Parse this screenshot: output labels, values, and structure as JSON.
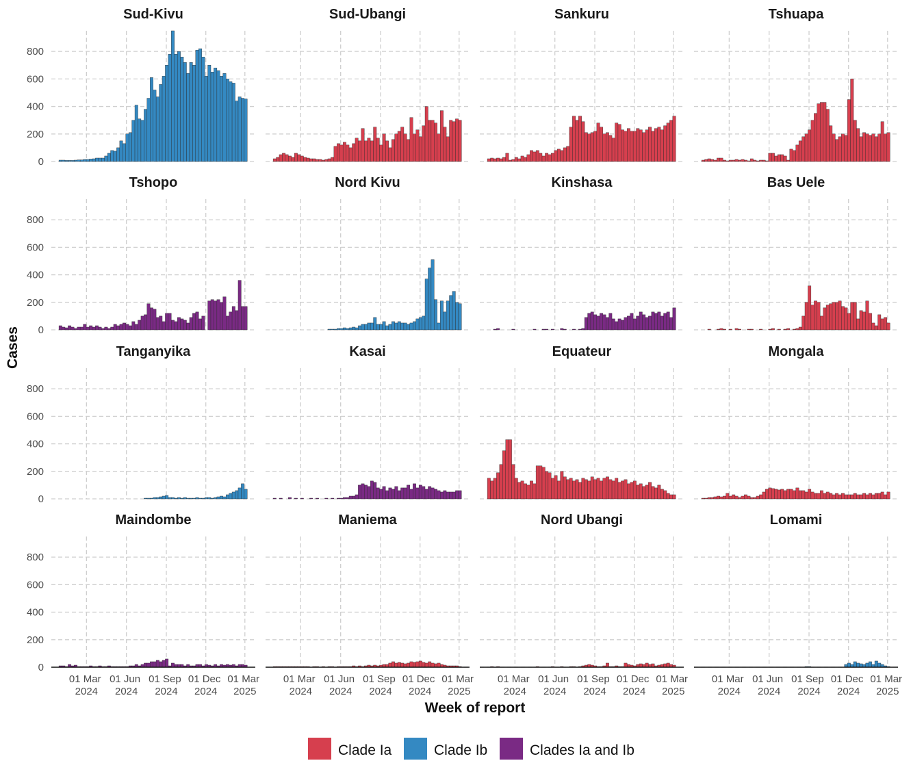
{
  "chart_data": {
    "type": "bar",
    "xlabel": "Week of report",
    "ylabel": "Cases",
    "ylim": [
      0,
      950
    ],
    "yticks": [
      0,
      200,
      400,
      600,
      800
    ],
    "xlim": [
      "2023-12-11",
      "2025-03-25"
    ],
    "xticks": [
      {
        "value": "2024-03-01",
        "label": "01 Mar 2024"
      },
      {
        "value": "2024-06-01",
        "label": "01 Jun 2024"
      },
      {
        "value": "2024-09-01",
        "label": "01 Sep 2024"
      },
      {
        "value": "2024-12-01",
        "label": "01 Dec 2024"
      },
      {
        "value": "2025-03-01",
        "label": "01 Mar 2025"
      }
    ],
    "grid": true,
    "legend": [
      {
        "name": "Clade Ia",
        "color": "#d63f4e"
      },
      {
        "name": "Clade Ib",
        "color": "#3489c2"
      },
      {
        "name": "Clades Ia and Ib",
        "color": "#7a2a84"
      }
    ],
    "x": [
      "2024-01-01",
      "2024-01-08",
      "2024-01-15",
      "2024-01-22",
      "2024-01-29",
      "2024-02-05",
      "2024-02-12",
      "2024-02-19",
      "2024-02-26",
      "2024-03-04",
      "2024-03-11",
      "2024-03-18",
      "2024-03-25",
      "2024-04-01",
      "2024-04-08",
      "2024-04-15",
      "2024-04-22",
      "2024-04-29",
      "2024-05-06",
      "2024-05-13",
      "2024-05-20",
      "2024-05-27",
      "2024-06-03",
      "2024-06-10",
      "2024-06-17",
      "2024-06-24",
      "2024-07-01",
      "2024-07-08",
      "2024-07-15",
      "2024-07-22",
      "2024-07-29",
      "2024-08-05",
      "2024-08-12",
      "2024-08-19",
      "2024-08-26",
      "2024-09-02",
      "2024-09-09",
      "2024-09-16",
      "2024-09-23",
      "2024-09-30",
      "2024-10-07",
      "2024-10-14",
      "2024-10-21",
      "2024-10-28",
      "2024-11-04",
      "2024-11-11",
      "2024-11-18",
      "2024-11-25",
      "2024-12-02",
      "2024-12-09",
      "2024-12-16",
      "2024-12-23",
      "2024-12-30",
      "2025-01-06",
      "2025-01-13",
      "2025-01-20",
      "2025-01-27",
      "2025-02-03",
      "2025-02-10",
      "2025-02-17",
      "2025-02-24",
      "2025-03-03"
    ],
    "panels": [
      {
        "title": "Sud-Kivu",
        "color": "#3489c2",
        "values": [
          10,
          10,
          8,
          8,
          8,
          10,
          12,
          12,
          15,
          15,
          18,
          20,
          25,
          25,
          25,
          40,
          60,
          80,
          75,
          100,
          150,
          130,
          200,
          210,
          300,
          410,
          310,
          300,
          380,
          460,
          610,
          520,
          470,
          560,
          620,
          700,
          780,
          950,
          780,
          800,
          760,
          720,
          640,
          720,
          700,
          810,
          820,
          760,
          620,
          700,
          650,
          680,
          660,
          620,
          640,
          600,
          580,
          570,
          440,
          470,
          460,
          455
        ]
      },
      {
        "title": "Sud-Ubangi",
        "color": "#d63f4e",
        "values": [
          20,
          30,
          50,
          60,
          50,
          40,
          30,
          60,
          50,
          40,
          30,
          25,
          20,
          20,
          15,
          15,
          10,
          15,
          20,
          30,
          110,
          130,
          120,
          140,
          120,
          100,
          130,
          170,
          150,
          240,
          150,
          170,
          150,
          250,
          170,
          120,
          200,
          150,
          100,
          160,
          200,
          220,
          250,
          200,
          160,
          320,
          200,
          230,
          180,
          260,
          400,
          300,
          300,
          280,
          200,
          370,
          250,
          180,
          300,
          290,
          310,
          300
        ]
      },
      {
        "title": "Sankuru",
        "color": "#d63f4e",
        "values": [
          20,
          25,
          20,
          25,
          20,
          30,
          60,
          10,
          15,
          30,
          20,
          40,
          30,
          50,
          80,
          70,
          80,
          60,
          40,
          60,
          50,
          60,
          80,
          90,
          80,
          100,
          110,
          250,
          330,
          300,
          330,
          290,
          210,
          200,
          210,
          220,
          280,
          250,
          200,
          210,
          190,
          170,
          280,
          270,
          230,
          220,
          240,
          220,
          220,
          240,
          230,
          210,
          230,
          250,
          220,
          240,
          250,
          230,
          260,
          280,
          300,
          330
        ]
      },
      {
        "title": "Tshuapa",
        "color": "#d63f4e",
        "values": [
          10,
          15,
          20,
          15,
          10,
          25,
          25,
          10,
          5,
          10,
          10,
          15,
          10,
          15,
          10,
          5,
          20,
          10,
          5,
          10,
          10,
          5,
          60,
          60,
          40,
          50,
          50,
          40,
          10,
          90,
          80,
          120,
          150,
          180,
          200,
          230,
          300,
          350,
          420,
          430,
          430,
          380,
          260,
          200,
          160,
          180,
          200,
          190,
          450,
          600,
          300,
          240,
          180,
          210,
          200,
          190,
          200,
          180,
          200,
          290,
          200,
          210
        ]
      },
      {
        "title": "Tshopo",
        "color": "#7a2a84",
        "values": [
          30,
          20,
          15,
          30,
          20,
          10,
          20,
          20,
          40,
          20,
          30,
          20,
          30,
          20,
          10,
          20,
          10,
          20,
          40,
          30,
          40,
          50,
          40,
          30,
          60,
          40,
          70,
          100,
          110,
          190,
          160,
          150,
          90,
          100,
          60,
          120,
          120,
          70,
          60,
          90,
          80,
          70,
          50,
          90,
          120,
          130,
          80,
          100,
          0,
          210,
          220,
          210,
          220,
          200,
          240,
          100,
          130,
          170,
          140,
          360,
          170,
          170
        ]
      },
      {
        "title": "Nord Kivu",
        "color": "#3489c2",
        "values": [
          0,
          0,
          0,
          0,
          0,
          0,
          0,
          0,
          0,
          0,
          0,
          0,
          0,
          0,
          0,
          0,
          0,
          0,
          5,
          5,
          5,
          10,
          10,
          15,
          10,
          15,
          20,
          15,
          30,
          40,
          40,
          50,
          50,
          90,
          40,
          40,
          60,
          30,
          40,
          60,
          50,
          60,
          50,
          50,
          40,
          50,
          60,
          80,
          90,
          100,
          370,
          450,
          510,
          220,
          50,
          210,
          130,
          210,
          250,
          280,
          200,
          190
        ]
      },
      {
        "title": "Kinshasa",
        "color": "#7a2a84",
        "values": [
          0,
          0,
          5,
          10,
          0,
          0,
          0,
          0,
          5,
          0,
          0,
          0,
          0,
          0,
          0,
          5,
          0,
          0,
          5,
          5,
          0,
          5,
          0,
          0,
          10,
          5,
          0,
          0,
          5,
          0,
          5,
          10,
          90,
          120,
          130,
          110,
          100,
          120,
          110,
          90,
          120,
          80,
          60,
          80,
          70,
          90,
          100,
          120,
          80,
          100,
          130,
          110,
          90,
          100,
          130,
          120,
          130,
          100,
          120,
          130,
          90,
          160
        ]
      },
      {
        "title": "Bas Uele",
        "color": "#d63f4e",
        "values": [
          0,
          0,
          5,
          0,
          0,
          5,
          10,
          5,
          0,
          5,
          0,
          10,
          5,
          0,
          0,
          5,
          5,
          0,
          0,
          5,
          0,
          0,
          5,
          10,
          0,
          5,
          0,
          5,
          10,
          0,
          5,
          10,
          20,
          100,
          200,
          320,
          180,
          210,
          200,
          100,
          160,
          180,
          190,
          200,
          200,
          210,
          170,
          160,
          120,
          200,
          200,
          80,
          140,
          130,
          210,
          120,
          50,
          30,
          110,
          80,
          90,
          50
        ]
      },
      {
        "title": "Tanganyika",
        "color": "#3489c2",
        "values": [
          0,
          0,
          0,
          0,
          0,
          0,
          0,
          0,
          0,
          0,
          0,
          0,
          0,
          0,
          0,
          0,
          0,
          0,
          0,
          0,
          0,
          0,
          0,
          0,
          0,
          0,
          0,
          0,
          5,
          5,
          5,
          10,
          10,
          15,
          20,
          25,
          10,
          10,
          5,
          10,
          5,
          10,
          5,
          5,
          5,
          10,
          5,
          5,
          10,
          10,
          5,
          10,
          15,
          20,
          15,
          30,
          40,
          50,
          60,
          80,
          110,
          70
        ]
      },
      {
        "title": "Kasai",
        "color": "#7a2a84",
        "values": [
          5,
          0,
          5,
          0,
          0,
          10,
          0,
          5,
          0,
          5,
          0,
          0,
          5,
          0,
          5,
          0,
          0,
          5,
          0,
          5,
          0,
          5,
          5,
          10,
          10,
          20,
          20,
          30,
          100,
          110,
          100,
          90,
          130,
          120,
          80,
          70,
          90,
          60,
          80,
          70,
          90,
          60,
          80,
          80,
          100,
          70,
          110,
          80,
          100,
          90,
          70,
          90,
          80,
          70,
          60,
          50,
          60,
          50,
          50,
          50,
          60,
          60
        ]
      },
      {
        "title": "Equateur",
        "color": "#d63f4e",
        "values": [
          150,
          130,
          150,
          190,
          250,
          350,
          430,
          430,
          250,
          150,
          120,
          130,
          110,
          100,
          130,
          110,
          240,
          240,
          230,
          200,
          190,
          150,
          170,
          130,
          200,
          160,
          140,
          150,
          130,
          140,
          120,
          150,
          140,
          130,
          160,
          140,
          150,
          130,
          150,
          160,
          140,
          130,
          150,
          120,
          130,
          140,
          110,
          120,
          130,
          100,
          110,
          90,
          100,
          120,
          90,
          80,
          100,
          70,
          60,
          40,
          30,
          30
        ]
      },
      {
        "title": "Mongala",
        "color": "#d63f4e",
        "values": [
          5,
          5,
          10,
          10,
          15,
          20,
          15,
          20,
          40,
          20,
          30,
          20,
          10,
          20,
          30,
          20,
          10,
          10,
          20,
          30,
          50,
          70,
          80,
          75,
          70,
          65,
          70,
          60,
          70,
          70,
          60,
          80,
          60,
          60,
          50,
          70,
          50,
          40,
          40,
          60,
          40,
          50,
          40,
          30,
          40,
          30,
          40,
          30,
          30,
          30,
          40,
          30,
          30,
          40,
          30,
          40,
          30,
          40,
          40,
          50,
          30,
          50
        ]
      },
      {
        "title": "Maindombe",
        "color": "#7a2a84",
        "values": [
          10,
          10,
          5,
          20,
          10,
          15,
          5,
          5,
          5,
          5,
          10,
          5,
          5,
          10,
          5,
          5,
          10,
          5,
          5,
          5,
          5,
          5,
          5,
          10,
          10,
          20,
          10,
          20,
          30,
          30,
          40,
          40,
          50,
          40,
          50,
          60,
          10,
          30,
          20,
          20,
          20,
          10,
          20,
          10,
          10,
          20,
          20,
          10,
          20,
          15,
          10,
          20,
          10,
          20,
          15,
          20,
          15,
          20,
          10,
          20,
          20,
          15
        ]
      },
      {
        "title": "Maniema",
        "color": "#d63f4e",
        "values": [
          5,
          5,
          5,
          5,
          5,
          5,
          5,
          5,
          5,
          5,
          5,
          5,
          0,
          5,
          5,
          0,
          5,
          0,
          5,
          5,
          0,
          5,
          5,
          5,
          5,
          5,
          10,
          5,
          10,
          5,
          10,
          15,
          10,
          15,
          10,
          15,
          20,
          20,
          30,
          40,
          30,
          35,
          30,
          25,
          30,
          40,
          35,
          40,
          45,
          35,
          30,
          40,
          30,
          25,
          30,
          20,
          15,
          10,
          10,
          10,
          10,
          5
        ]
      },
      {
        "title": "Nord Ubangi",
        "color": "#d63f4e",
        "values": [
          0,
          5,
          0,
          5,
          0,
          0,
          0,
          0,
          0,
          0,
          0,
          0,
          0,
          0,
          0,
          0,
          5,
          0,
          0,
          0,
          0,
          5,
          0,
          0,
          5,
          0,
          0,
          5,
          5,
          0,
          5,
          10,
          15,
          20,
          15,
          10,
          5,
          5,
          10,
          30,
          5,
          5,
          10,
          5,
          5,
          30,
          20,
          15,
          10,
          20,
          25,
          20,
          30,
          20,
          25,
          10,
          15,
          20,
          25,
          30,
          20,
          15
        ]
      },
      {
        "title": "Lomami",
        "color": "#3489c2",
        "values": [
          0,
          0,
          0,
          0,
          0,
          0,
          0,
          0,
          0,
          0,
          0,
          0,
          0,
          0,
          0,
          0,
          0,
          0,
          0,
          0,
          0,
          0,
          0,
          0,
          0,
          0,
          0,
          0,
          0,
          0,
          0,
          0,
          0,
          0,
          5,
          5,
          0,
          0,
          0,
          0,
          0,
          0,
          0,
          0,
          0,
          0,
          0,
          20,
          30,
          20,
          40,
          30,
          25,
          20,
          30,
          40,
          20,
          45,
          30,
          20,
          10,
          5
        ]
      }
    ]
  }
}
